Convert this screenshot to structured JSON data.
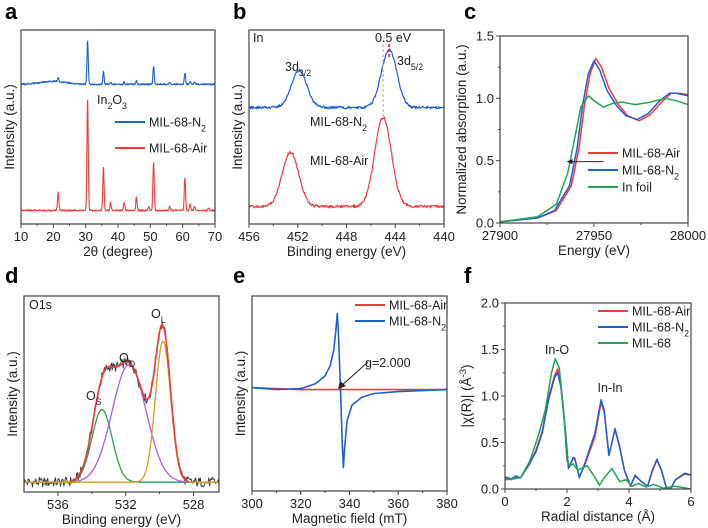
{
  "colors": {
    "red": "#f23a3a",
    "blue": "#1f5fd6",
    "green": "#23a455",
    "purple": "#b05ce8",
    "orange": "#d4a11a",
    "gray": "#3a3a3a",
    "axis": "#444444"
  },
  "chart_data": [
    {
      "panel": "a",
      "type": "line",
      "title": "",
      "xlabel": [
        {
          "t": "2θ (degree)"
        }
      ],
      "ylabel": [
        {
          "t": "Intensity (a.u.)"
        }
      ],
      "xlim": [
        10,
        70
      ],
      "ylim": [
        0,
        100
      ],
      "xticks": [
        10,
        20,
        30,
        40,
        50,
        60,
        70
      ],
      "yticks": [],
      "annotations": [
        {
          "text": [
            {
              "t": "In"
            },
            {
              "t": "2",
              "s": "sub"
            },
            {
              "t": "O"
            },
            {
              "t": "3",
              "s": "sub"
            }
          ]
        }
      ],
      "series": [
        {
          "name": [
            {
              "t": "MIL-68-N"
            },
            {
              "t": "2",
              "s": "sub"
            }
          ],
          "color": "blue",
          "baseline": 72,
          "hump": {
            "x": 20,
            "height": 1.5
          },
          "peaks": [
            [
              21.5,
              2
            ],
            [
              30.6,
              23
            ],
            [
              35.5,
              7
            ],
            [
              37.7,
              1.2
            ],
            [
              41.9,
              1.2
            ],
            [
              45.7,
              2
            ],
            [
              51.0,
              9
            ],
            [
              56.0,
              1
            ],
            [
              60.7,
              6
            ],
            [
              62.3,
              1.2
            ],
            [
              63.7,
              1
            ]
          ]
        },
        {
          "name": [
            {
              "t": "MIL-68-Air"
            }
          ],
          "color": "red",
          "baseline": 7,
          "peaks": [
            [
              21.5,
              10
            ],
            [
              30.6,
              58
            ],
            [
              35.5,
              23
            ],
            [
              37.7,
              4
            ],
            [
              41.9,
              4
            ],
            [
              45.7,
              7
            ],
            [
              49.5,
              2
            ],
            [
              51.0,
              25
            ],
            [
              56.0,
              2
            ],
            [
              60.7,
              17
            ],
            [
              62.3,
              3
            ],
            [
              63.7,
              2
            ],
            [
              68.0,
              1
            ]
          ]
        }
      ]
    },
    {
      "panel": "b",
      "type": "line",
      "xlabel": [
        {
          "t": "Binding energy (eV)"
        }
      ],
      "ylabel": [
        {
          "t": "Intensity (a.u.)"
        }
      ],
      "xlim": [
        456,
        440
      ],
      "ylim": [
        0,
        100
      ],
      "xticks": [
        456,
        452,
        448,
        444,
        440
      ],
      "yticks": [],
      "annotations": [
        {
          "text": [
            {
              "t": "In"
            }
          ]
        },
        {
          "text": [
            {
              "t": "3d"
            },
            {
              "t": "3/2",
              "s": "sub"
            }
          ]
        },
        {
          "text": [
            {
              "t": "0.5 eV"
            }
          ]
        },
        {
          "text": [
            {
              "t": "3d"
            },
            {
              "t": "5/2",
              "s": "sub"
            }
          ]
        }
      ],
      "reference_lines": [
        {
          "x": 445.0,
          "color": "gray"
        },
        {
          "x": 444.5,
          "color": "red"
        }
      ],
      "series": [
        {
          "name": [
            {
              "t": "MIL-68-N"
            },
            {
              "t": "2",
              "s": "sub"
            }
          ],
          "color": "blue",
          "baseline": 60,
          "fwhm": 1.5,
          "peaks": [
            [
              451.9,
              19
            ],
            [
              444.5,
              30
            ]
          ]
        },
        {
          "name": [
            {
              "t": "MIL-68-Air"
            }
          ],
          "color": "red",
          "baseline": 9,
          "fwhm": 1.6,
          "peaks": [
            [
              452.6,
              28
            ],
            [
              445.0,
              46
            ]
          ]
        }
      ]
    },
    {
      "panel": "c",
      "type": "line",
      "xlabel": [
        {
          "t": "Energy (eV)"
        }
      ],
      "ylabel": [
        {
          "t": "Normalized absorption (a.u.)"
        }
      ],
      "xlim": [
        27900,
        28000
      ],
      "ylim": [
        0,
        1.5
      ],
      "xticks": [
        27900,
        27950,
        28000
      ],
      "yticks": [
        0.0,
        0.5,
        1.0,
        1.5
      ],
      "series": [
        {
          "name": [
            {
              "t": "MIL-68-Air"
            }
          ],
          "color": "red",
          "x": [
            27900,
            27920,
            27930,
            27938,
            27942,
            27945,
            27948,
            27951,
            27954,
            27958,
            27963,
            27968,
            27974,
            27980,
            27986,
            27991,
            27995,
            28000
          ],
          "y": [
            0.01,
            0.04,
            0.1,
            0.3,
            0.6,
            0.95,
            1.2,
            1.32,
            1.25,
            1.08,
            0.95,
            0.86,
            0.82,
            0.87,
            0.97,
            1.04,
            1.04,
            1.03
          ]
        },
        {
          "name": [
            {
              "t": "MIL-68-N"
            },
            {
              "t": "2",
              "s": "sub"
            }
          ],
          "color": "blue",
          "x": [
            27900,
            27920,
            27929,
            27937,
            27941,
            27944,
            27947,
            27950,
            27953,
            27957,
            27962,
            27967,
            27973,
            27979,
            27985,
            27990,
            27994,
            28000
          ],
          "y": [
            0.01,
            0.04,
            0.1,
            0.3,
            0.6,
            0.95,
            1.2,
            1.3,
            1.23,
            1.06,
            0.94,
            0.86,
            0.83,
            0.88,
            0.98,
            1.04,
            1.04,
            1.02
          ]
        },
        {
          "name": [
            {
              "t": "In foil"
            }
          ],
          "color": "green",
          "x": [
            27900,
            27920,
            27930,
            27936,
            27940,
            27943,
            27947,
            27950,
            27955,
            27960,
            27965,
            27972,
            27980,
            27988,
            27994,
            28000
          ],
          "y": [
            0.01,
            0.05,
            0.15,
            0.4,
            0.7,
            0.93,
            1.02,
            0.98,
            0.93,
            0.96,
            0.97,
            0.95,
            0.97,
            1.0,
            0.98,
            0.95
          ]
        }
      ],
      "arrow": {
        "from": 27946,
        "to": 27937,
        "y": 0.5
      }
    },
    {
      "panel": "d",
      "type": "line",
      "xlabel": [
        {
          "t": "Binding energy (eV)"
        }
      ],
      "ylabel": [
        {
          "t": "Intensity (a.u.)"
        }
      ],
      "xlim": [
        538,
        526.5
      ],
      "ylim": [
        0,
        100
      ],
      "xticks": [
        536,
        532,
        528
      ],
      "yticks": [],
      "annotations": [
        {
          "text": [
            {
              "t": "O1s"
            }
          ]
        },
        {
          "text": [
            {
              "t": "O"
            },
            {
              "t": "S",
              "s": "sub"
            }
          ]
        },
        {
          "text": [
            {
              "t": "O"
            },
            {
              "t": "D",
              "s": "sub"
            }
          ]
        },
        {
          "text": [
            {
              "t": "O"
            },
            {
              "t": "L",
              "s": "sub"
            }
          ]
        }
      ],
      "baseline": 5,
      "components": [
        {
          "name": "O_S",
          "color": "green",
          "center": 533.4,
          "height": 37,
          "sigma": 0.6
        },
        {
          "name": "O_D",
          "color": "purple",
          "center": 531.8,
          "height": 60,
          "sigma": 1.0
        },
        {
          "name": "O_L",
          "color": "orange",
          "center": 529.8,
          "height": 72,
          "sigma": 0.45
        }
      ],
      "envelope_color": "red",
      "raw_color": "gray"
    },
    {
      "panel": "e",
      "type": "line",
      "xlabel": [
        {
          "t": "Magnetic field (mT)"
        }
      ],
      "ylabel": [
        {
          "t": "Intensity (a.u.)"
        }
      ],
      "xlim": [
        300,
        380
      ],
      "ylim": [
        0,
        1
      ],
      "xticks": [
        300,
        320,
        340,
        360,
        380
      ],
      "yticks": [],
      "annotations": [
        {
          "text": [
            {
              "t": "g=2.000"
            }
          ]
        }
      ],
      "series": [
        {
          "name": [
            {
              "t": "MIL-68-Air"
            }
          ],
          "color": "red",
          "x": [
            300,
            320,
            340,
            360,
            380
          ],
          "y": [
            0.53,
            0.52,
            0.52,
            0.52,
            0.52
          ]
        },
        {
          "name": [
            {
              "t": "MIL-68-N"
            },
            {
              "t": "2",
              "s": "sub"
            }
          ],
          "color": "blue",
          "x": [
            300,
            310,
            320,
            326,
            330,
            332,
            333.5,
            334.4,
            335,
            335.5,
            336.3,
            337,
            337.5,
            338,
            339,
            341,
            345,
            350,
            360,
            380
          ],
          "y": [
            0.53,
            0.52,
            0.525,
            0.55,
            0.59,
            0.64,
            0.72,
            0.82,
            0.91,
            0.8,
            0.52,
            0.25,
            0.12,
            0.22,
            0.36,
            0.44,
            0.48,
            0.5,
            0.51,
            0.52
          ]
        }
      ]
    },
    {
      "panel": "f",
      "type": "line",
      "xlabel": [
        {
          "t": "Radial distance (Å)"
        }
      ],
      "ylabel": [
        {
          "t": "|χ(R)| (Å"
        },
        {
          "t": "-3",
          "s": "sup"
        },
        {
          "t": ")"
        }
      ],
      "xlim": [
        0,
        6
      ],
      "ylim": [
        0,
        2
      ],
      "xticks": [
        0,
        2,
        4,
        6
      ],
      "yticks": [
        0.0,
        0.5,
        1.0,
        1.5,
        2.0
      ],
      "annotations": [
        {
          "text": [
            {
              "t": "In-O"
            }
          ]
        },
        {
          "text": [
            {
              "t": "In-In"
            }
          ]
        }
      ],
      "series": [
        {
          "name": [
            {
              "t": "MIL-68-Air"
            }
          ],
          "color": "red",
          "x": [
            0,
            0.2,
            0.35,
            0.5,
            0.8,
            1.0,
            1.2,
            1.4,
            1.6,
            1.7,
            1.8,
            1.95,
            2.05,
            2.2,
            2.25,
            2.4,
            2.6,
            2.9,
            3.1,
            3.2,
            3.35,
            3.45,
            3.55,
            3.7,
            3.85,
            4.05,
            4.2,
            4.4,
            4.6,
            4.75,
            4.9,
            5.05,
            5.2,
            5.35,
            5.5,
            5.8,
            6
          ],
          "y": [
            0.12,
            0.1,
            0.13,
            0.12,
            0.27,
            0.42,
            0.62,
            0.98,
            1.22,
            1.29,
            1.15,
            0.62,
            0.22,
            0.33,
            0.32,
            0.13,
            0.28,
            0.56,
            0.93,
            0.83,
            0.37,
            0.5,
            0.64,
            0.45,
            0.2,
            0.04,
            0.14,
            0.08,
            0.03,
            0.19,
            0.31,
            0.2,
            0.02,
            0.01,
            0.1,
            0.16,
            0.15
          ]
        },
        {
          "name": [
            {
              "t": "MIL-68-N"
            },
            {
              "t": "2",
              "s": "sub"
            }
          ],
          "color": "blue",
          "x": [
            0,
            0.2,
            0.35,
            0.5,
            0.8,
            1.0,
            1.2,
            1.4,
            1.6,
            1.7,
            1.8,
            1.95,
            2.05,
            2.2,
            2.25,
            2.4,
            2.6,
            2.9,
            3.1,
            3.2,
            3.35,
            3.45,
            3.55,
            3.7,
            3.85,
            4.05,
            4.2,
            4.4,
            4.6,
            4.75,
            4.9,
            5.05,
            5.2,
            5.35,
            5.5,
            5.8,
            6
          ],
          "y": [
            0.13,
            0.11,
            0.14,
            0.12,
            0.28,
            0.4,
            0.6,
            0.95,
            1.2,
            1.25,
            1.1,
            0.6,
            0.22,
            0.34,
            0.33,
            0.12,
            0.3,
            0.6,
            0.96,
            0.85,
            0.36,
            0.5,
            0.65,
            0.45,
            0.2,
            0.03,
            0.15,
            0.08,
            0.03,
            0.2,
            0.32,
            0.2,
            0.02,
            0.01,
            0.1,
            0.17,
            0.15
          ]
        },
        {
          "name": [
            {
              "t": "MIL-68"
            }
          ],
          "color": "green",
          "x": [
            0,
            0.3,
            0.5,
            0.8,
            1.1,
            1.3,
            1.5,
            1.62,
            1.75,
            1.9,
            2.0,
            2.1,
            2.2,
            2.35,
            2.45,
            2.65,
            2.85,
            3.05,
            3.2,
            3.45,
            3.7,
            3.9,
            4.1,
            4.3,
            4.55,
            4.8,
            5.1,
            5.5,
            6
          ],
          "y": [
            0.1,
            0.11,
            0.12,
            0.3,
            0.6,
            0.85,
            1.25,
            1.4,
            1.3,
            0.8,
            0.3,
            0.25,
            0.27,
            0.2,
            0.22,
            0.25,
            0.15,
            0.04,
            0.12,
            0.22,
            0.08,
            0.1,
            0.03,
            0.06,
            0.02,
            0.05,
            0.01,
            0.03,
            0.0
          ]
        }
      ]
    }
  ]
}
